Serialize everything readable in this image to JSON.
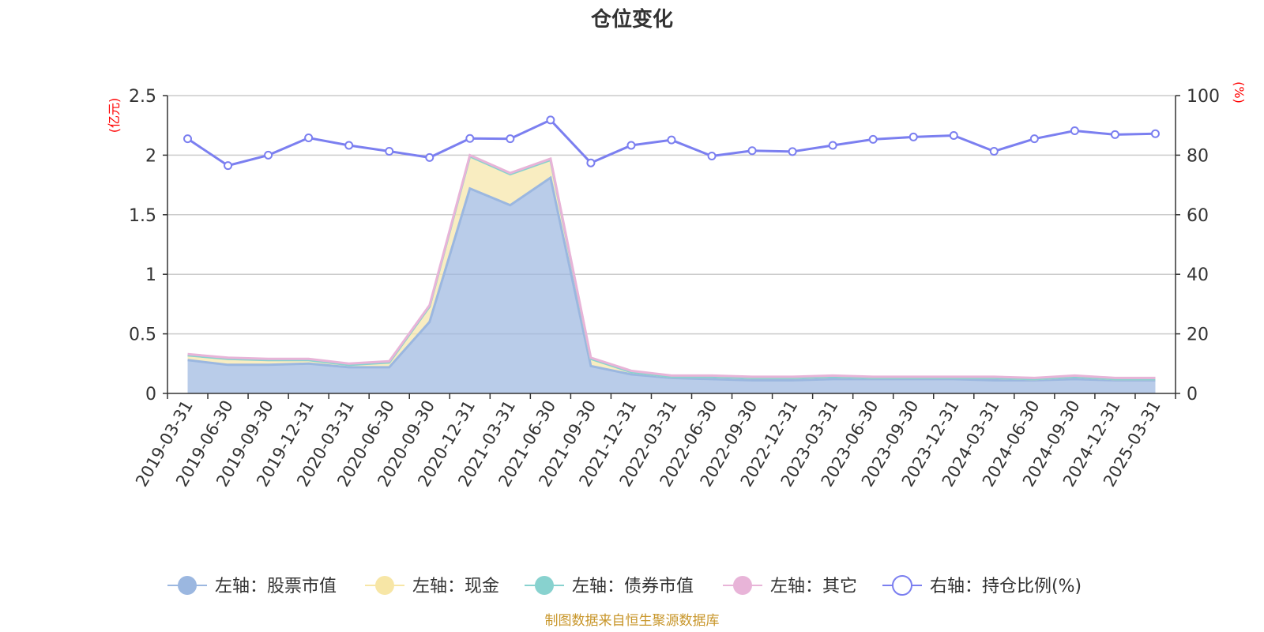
{
  "chart_data": {
    "type": "area",
    "title": "仓位变化",
    "left_axis_unit": "(亿元)",
    "right_axis_unit": "(%)",
    "categories": [
      "2019-03-31",
      "2019-06-30",
      "2019-09-30",
      "2019-12-31",
      "2020-03-31",
      "2020-06-30",
      "2020-09-30",
      "2020-12-31",
      "2021-03-31",
      "2021-06-30",
      "2021-09-30",
      "2021-12-31",
      "2022-03-31",
      "2022-06-30",
      "2022-09-30",
      "2022-12-31",
      "2023-03-31",
      "2023-06-30",
      "2023-09-30",
      "2023-12-31",
      "2024-03-31",
      "2024-06-30",
      "2024-09-30",
      "2024-12-31",
      "2025-03-31"
    ],
    "left_yticks": [
      "0",
      "0.5",
      "1",
      "1.5",
      "2",
      "2.5"
    ],
    "right_yticks": [
      "0",
      "20",
      "40",
      "60",
      "80",
      "100"
    ],
    "left_ylim": [
      0,
      2.5
    ],
    "right_ylim": [
      0,
      100
    ],
    "grid": true,
    "legend_position": "bottom",
    "series": [
      {
        "name": "左轴：股票市值",
        "axis": "left",
        "stacked": true,
        "color": "#9bb7e0",
        "values": [
          0.28,
          0.24,
          0.24,
          0.25,
          0.22,
          0.22,
          0.6,
          1.72,
          1.58,
          1.81,
          0.23,
          0.16,
          0.13,
          0.12,
          0.11,
          0.11,
          0.12,
          0.12,
          0.12,
          0.12,
          0.11,
          0.11,
          0.12,
          0.11,
          0.11
        ]
      },
      {
        "name": "左轴：现金",
        "axis": "left",
        "stacked": true,
        "color": "#f7e6a6",
        "values": [
          0.04,
          0.05,
          0.04,
          0.03,
          0.02,
          0.04,
          0.13,
          0.27,
          0.26,
          0.15,
          0.06,
          0.02,
          0.01,
          0.02,
          0.02,
          0.02,
          0.02,
          0.01,
          0.01,
          0.01,
          0.02,
          0.01,
          0.02,
          0.01,
          0.01
        ]
      },
      {
        "name": "左轴：债券市值",
        "axis": "left",
        "stacked": true,
        "color": "#88d2cf",
        "values": [
          0,
          0,
          0,
          0,
          0,
          0,
          0,
          0,
          0,
          0,
          0,
          0,
          0,
          0,
          0,
          0,
          0,
          0,
          0,
          0,
          0,
          0,
          0,
          0,
          0
        ]
      },
      {
        "name": "左轴：其它",
        "axis": "left",
        "stacked": true,
        "color": "#e8b4d8",
        "values": [
          0.01,
          0.01,
          0.01,
          0.01,
          0.01,
          0.01,
          0.01,
          0.01,
          0.01,
          0.01,
          0.01,
          0.01,
          0.01,
          0.01,
          0.01,
          0.01,
          0.01,
          0.01,
          0.01,
          0.01,
          0.01,
          0.01,
          0.01,
          0.01,
          0.01
        ]
      },
      {
        "name": "右轴：持仓比例(%)",
        "axis": "right",
        "type": "line",
        "color": "#7b7ff0",
        "values": [
          85.5,
          76.5,
          80.0,
          85.8,
          83.3,
          81.3,
          79.2,
          85.6,
          85.5,
          91.8,
          77.4,
          83.3,
          85.1,
          79.7,
          81.5,
          81.2,
          83.3,
          85.3,
          86.1,
          86.6,
          81.3,
          85.5,
          88.2,
          86.9,
          87.2
        ]
      }
    ],
    "source": "制图数据来自恒生聚源数据库"
  }
}
